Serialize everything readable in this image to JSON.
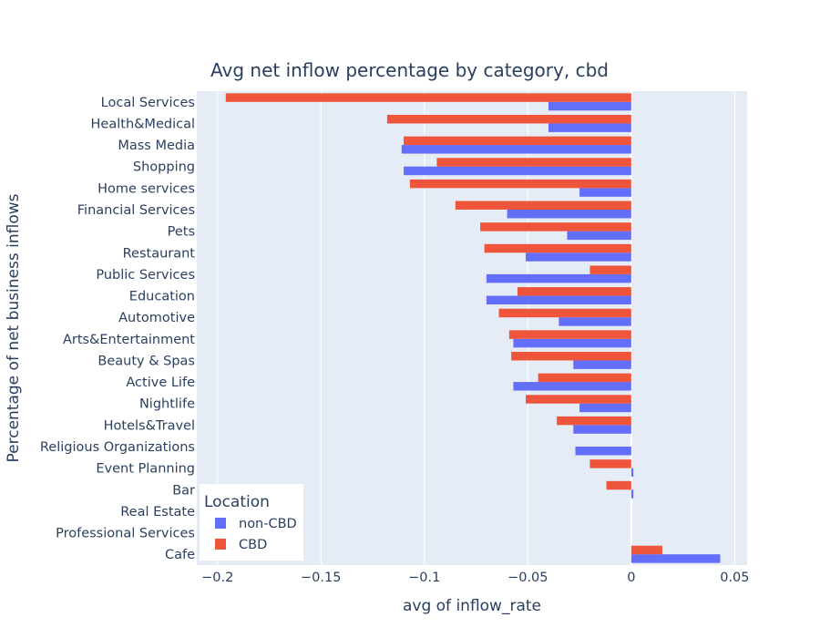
{
  "chart_data": {
    "type": "bar",
    "orientation": "horizontal",
    "title": "Avg net inflow percentage by category, cbd",
    "xlabel": "avg of inflow_rate",
    "ylabel": "Percentage of net business inflows",
    "xlim": [
      -0.21,
      0.056
    ],
    "xticks": [
      -0.2,
      -0.15,
      -0.1,
      -0.05,
      0,
      0.05
    ],
    "xtick_labels": [
      "−0.2",
      "−0.15",
      "−0.1",
      "−0.05",
      "0",
      "0.05"
    ],
    "grid": true,
    "categories": [
      "Local Services",
      "Health&Medical",
      "Mass Media",
      "Shopping",
      "Home services",
      "Financial Services",
      "Pets",
      "Restaurant",
      "Public Services",
      "Education",
      "Automotive",
      "Arts&Entertainment",
      "Beauty & Spas",
      "Active Life",
      "Nightlife",
      "Hotels&Travel",
      "Religious Organizations",
      "Event Planning",
      "Bar",
      "Real Estate",
      "Professional Services",
      "Cafe"
    ],
    "legend": {
      "title": "Location",
      "position": "bottom-left"
    },
    "series": [
      {
        "name": "non-CBD",
        "color": "#636efa",
        "values": [
          -0.04,
          -0.04,
          -0.111,
          -0.11,
          -0.025,
          -0.06,
          -0.031,
          -0.051,
          -0.07,
          -0.07,
          -0.035,
          -0.057,
          -0.028,
          -0.057,
          -0.025,
          -0.028,
          -0.027,
          0.001,
          0.001,
          0,
          0,
          0.043
        ]
      },
      {
        "name": "CBD",
        "color": "#ef553b",
        "values": [
          -0.196,
          -0.118,
          -0.11,
          -0.094,
          -0.107,
          -0.085,
          -0.073,
          -0.071,
          -0.02,
          -0.055,
          -0.064,
          -0.059,
          -0.058,
          -0.045,
          -0.051,
          -0.036,
          0,
          -0.02,
          -0.012,
          0,
          0,
          0.015
        ]
      }
    ]
  }
}
